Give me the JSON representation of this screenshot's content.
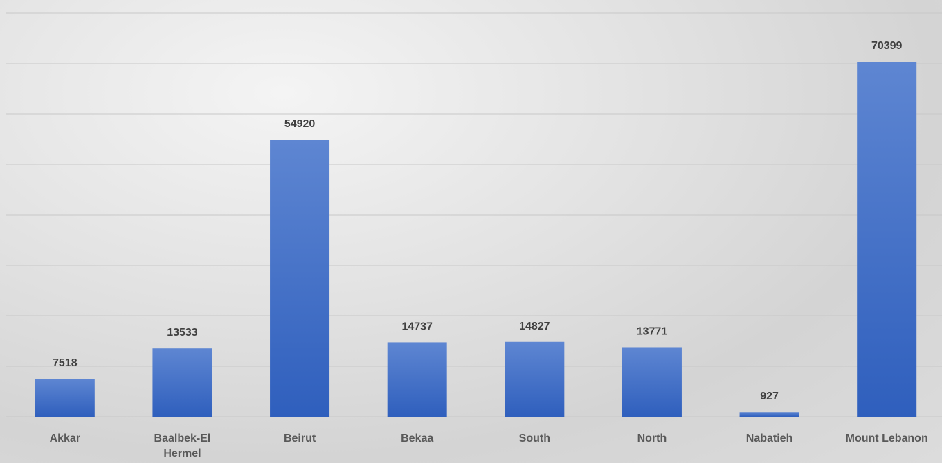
{
  "chart_data": {
    "type": "bar",
    "categories": [
      "Akkar",
      "Baalbek-El Hermel",
      "Beirut",
      "Bekaa",
      "South",
      "North",
      "Nabatieh",
      "Mount Lebanon"
    ],
    "values": [
      7518,
      13533,
      54920,
      14737,
      14827,
      13771,
      927,
      70399
    ],
    "color": "#4472c4",
    "ylim": [
      0,
      80000
    ],
    "yticks": [
      0,
      10000,
      20000,
      30000,
      40000,
      50000,
      60000,
      70000,
      80000
    ],
    "grid": true
  }
}
